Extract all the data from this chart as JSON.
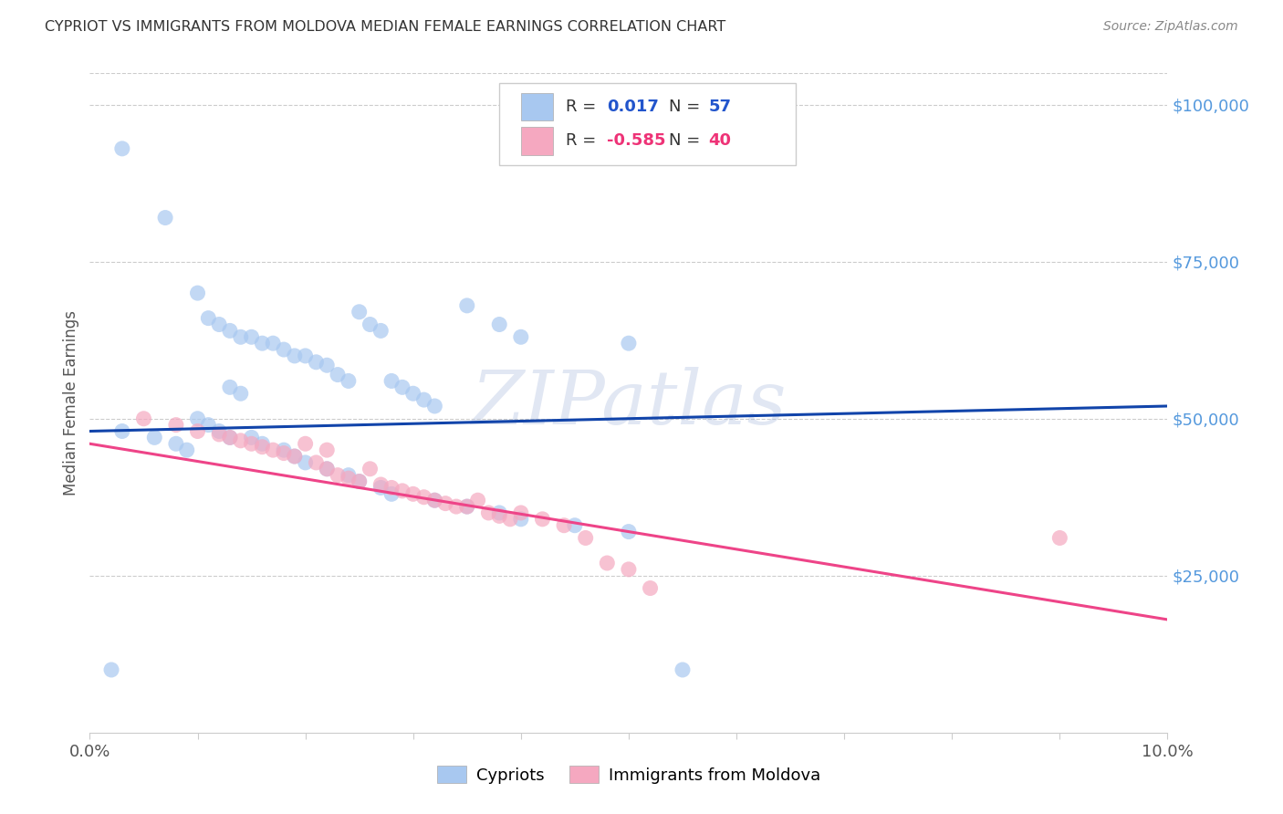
{
  "title": "CYPRIOT VS IMMIGRANTS FROM MOLDOVA MEDIAN FEMALE EARNINGS CORRELATION CHART",
  "source": "Source: ZipAtlas.com",
  "ylabel": "Median Female Earnings",
  "ytick_labels": [
    "$25,000",
    "$50,000",
    "$75,000",
    "$100,000"
  ],
  "ytick_values": [
    25000,
    50000,
    75000,
    100000
  ],
  "legend_label1": "Cypriots",
  "legend_label2": "Immigrants from Moldova",
  "watermark": "ZIPatlas",
  "blue_color": "#A8C8F0",
  "pink_color": "#F5A8C0",
  "line_blue_color": "#1144AA",
  "line_pink_color": "#EE4488",
  "blue_scatter_x": [
    0.003,
    0.007,
    0.01,
    0.011,
    0.012,
    0.013,
    0.014,
    0.015,
    0.016,
    0.017,
    0.018,
    0.019,
    0.02,
    0.021,
    0.022,
    0.023,
    0.024,
    0.025,
    0.026,
    0.027,
    0.028,
    0.029,
    0.03,
    0.031,
    0.032,
    0.013,
    0.014,
    0.035,
    0.038,
    0.04,
    0.05,
    0.003,
    0.006,
    0.008,
    0.009,
    0.01,
    0.011,
    0.012,
    0.013,
    0.015,
    0.016,
    0.018,
    0.019,
    0.02,
    0.022,
    0.024,
    0.025,
    0.027,
    0.028,
    0.032,
    0.035,
    0.038,
    0.04,
    0.045,
    0.05,
    0.055,
    0.002
  ],
  "blue_scatter_y": [
    93000,
    82000,
    70000,
    66000,
    65000,
    64000,
    63000,
    63000,
    62000,
    62000,
    61000,
    60000,
    60000,
    59000,
    58500,
    57000,
    56000,
    67000,
    65000,
    64000,
    56000,
    55000,
    54000,
    53000,
    52000,
    55000,
    54000,
    68000,
    65000,
    63000,
    62000,
    48000,
    47000,
    46000,
    45000,
    50000,
    49000,
    48000,
    47000,
    47000,
    46000,
    45000,
    44000,
    43000,
    42000,
    41000,
    40000,
    39000,
    38000,
    37000,
    36000,
    35000,
    34000,
    33000,
    32000,
    10000,
    10000
  ],
  "pink_scatter_x": [
    0.005,
    0.008,
    0.01,
    0.012,
    0.013,
    0.014,
    0.015,
    0.016,
    0.017,
    0.018,
    0.019,
    0.02,
    0.021,
    0.022,
    0.022,
    0.023,
    0.024,
    0.025,
    0.026,
    0.027,
    0.028,
    0.029,
    0.03,
    0.031,
    0.032,
    0.033,
    0.034,
    0.035,
    0.036,
    0.037,
    0.038,
    0.039,
    0.04,
    0.042,
    0.044,
    0.046,
    0.048,
    0.05,
    0.052,
    0.09
  ],
  "pink_scatter_y": [
    50000,
    49000,
    48000,
    47500,
    47000,
    46500,
    46000,
    45500,
    45000,
    44500,
    44000,
    46000,
    43000,
    42000,
    45000,
    41000,
    40500,
    40000,
    42000,
    39500,
    39000,
    38500,
    38000,
    37500,
    37000,
    36500,
    36000,
    36000,
    37000,
    35000,
    34500,
    34000,
    35000,
    34000,
    33000,
    31000,
    27000,
    26000,
    23000,
    31000
  ],
  "blue_line_x": [
    0.0,
    0.1
  ],
  "blue_line_y": [
    48000,
    52000
  ],
  "pink_line_x": [
    0.0,
    0.1
  ],
  "pink_line_y": [
    46000,
    18000
  ],
  "xmin": 0.0,
  "xmax": 0.1,
  "ymin": 0,
  "ymax": 105000,
  "grid_color": "#CCCCCC",
  "spine_color": "#CCCCCC"
}
